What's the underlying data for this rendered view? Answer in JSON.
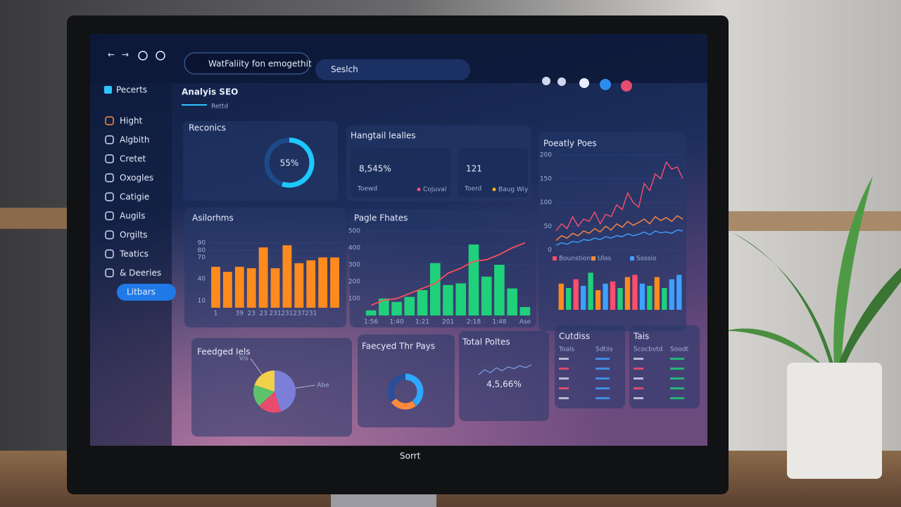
{
  "browser": {
    "address": "WatFaliity fon emogethit",
    "search": "Seslch"
  },
  "sidebar": {
    "title": "Pecerts",
    "items": [
      "Hight",
      "Algbith",
      "Cretet",
      "Oxogles",
      "Catigie",
      "Augils",
      "Orgilts",
      "Teatics",
      "& Deeries",
      "Litbars"
    ],
    "active": 9
  },
  "header": {
    "title": "Analyis SEO",
    "tab": "Rettd"
  },
  "rankings": {
    "type": "donut",
    "title": "Reconics",
    "values": [
      55
    ],
    "value_labels": [
      "55%"
    ],
    "color": "#1ec8ff"
  },
  "kpis": {
    "title": "Hangtail lealles",
    "items": [
      {
        "value": "8,545%",
        "label": "Toewd",
        "legend": "Cojuval",
        "color": "#ff4d6d"
      },
      {
        "value": "121",
        "label": "Toerd",
        "legend": "Baug Wiy",
        "color": "#ffb020"
      }
    ]
  },
  "algorithms": {
    "type": "bar",
    "title": "Asilorhms",
    "color": "#ff8a1e",
    "categories": [
      "1",
      null,
      "39",
      "23",
      "23",
      "231",
      "231",
      "237",
      "231",
      null,
      null
    ],
    "values": [
      57,
      50,
      57,
      55,
      84,
      55,
      87,
      62,
      66,
      70,
      70
    ],
    "ylim": [
      0,
      100
    ],
    "yticks": [
      10,
      40,
      70,
      80,
      90
    ]
  },
  "page_rates": {
    "type": "bar_line",
    "title": "Pagle Fhates",
    "categories": [
      "1:56",
      null,
      "1:40",
      null,
      "1:21",
      null,
      "201",
      null,
      "2:18",
      null,
      "1:48",
      null,
      "Ase"
    ],
    "bars": {
      "color": "#1fd17a",
      "values": [
        30,
        100,
        80,
        110,
        150,
        310,
        180,
        190,
        420,
        230,
        300,
        160,
        50
      ]
    },
    "line": {
      "color": "#ff4d5a",
      "values": [
        60,
        90,
        100,
        130,
        160,
        190,
        250,
        280,
        320,
        330,
        360,
        400,
        430
      ]
    },
    "ylim": [
      0,
      500
    ],
    "yticks": [
      100,
      200,
      300,
      400,
      500
    ]
  },
  "weekly": {
    "type": "line",
    "title": "Poeatly Poes",
    "ylim": [
      0,
      200
    ],
    "yticks": [
      0,
      50,
      100,
      150,
      200
    ],
    "series": [
      {
        "name": "Bounstion",
        "color": "#ff4d6d",
        "values": [
          40,
          55,
          45,
          70,
          50,
          65,
          60,
          80,
          55,
          75,
          70,
          95,
          85,
          120,
          100,
          90,
          140,
          125,
          160,
          150,
          185,
          170,
          175,
          150
        ]
      },
      {
        "name": "Ulos",
        "color": "#ff8a3d",
        "values": [
          20,
          30,
          25,
          35,
          30,
          40,
          35,
          45,
          38,
          50,
          42,
          55,
          48,
          60,
          52,
          58,
          65,
          55,
          70,
          62,
          68,
          60,
          72,
          65
        ]
      },
      {
        "name": "Sossio",
        "color": "#3ea0ff",
        "values": [
          10,
          15,
          12,
          18,
          16,
          22,
          20,
          25,
          22,
          28,
          25,
          30,
          28,
          34,
          30,
          33,
          38,
          32,
          40,
          36,
          38,
          35,
          42,
          40
        ]
      }
    ]
  },
  "weekly_bars": {
    "type": "bar",
    "ylim": [
      0,
      100
    ],
    "values": [
      60,
      50,
      70,
      55,
      85,
      45,
      60,
      65,
      50,
      75,
      80,
      60,
      55,
      75,
      50,
      70,
      80
    ],
    "colors": [
      "#ff8a1e",
      "#1fd17a",
      "#ff4d6d",
      "#3ea0ff",
      "#1fd17a",
      "#ff8a1e",
      "#3ea0ff",
      "#ff4d6d",
      "#1fd17a",
      "#ff8a1e",
      "#ff4d6d",
      "#3ea0ff",
      "#1fd17a",
      "#ff8a1e",
      "#1fd17a",
      "#3ea0ff",
      "#3ea0ff"
    ]
  },
  "sources": {
    "type": "pie",
    "title": "Feedged Iels",
    "categories": [
      "Abe",
      null,
      null,
      "Vis"
    ],
    "values": [
      45,
      18,
      17,
      20
    ],
    "colors": [
      "#7b7fd8",
      "#e74c6f",
      "#5cc36b",
      "#f2d04a"
    ]
  },
  "top_pages": {
    "type": "donut",
    "title": "Faecyed Thr Pays",
    "values": [
      40,
      25,
      35
    ],
    "colors": [
      "#2ea8ff",
      "#ff8a3d",
      "#2a4f9a"
    ]
  },
  "total": {
    "title": "Total Poltes",
    "value": "4,5,66%",
    "values": [
      20,
      45,
      30,
      55,
      40,
      60,
      50,
      65,
      55,
      70
    ]
  },
  "tables": [
    {
      "title": "Cutdiss",
      "columns": [
        "Toals",
        "Sdtiis"
      ]
    },
    {
      "title": "Tais",
      "columns": [
        "Scocbvtd",
        "Soodt"
      ]
    }
  ],
  "brand": "Sorrt"
}
